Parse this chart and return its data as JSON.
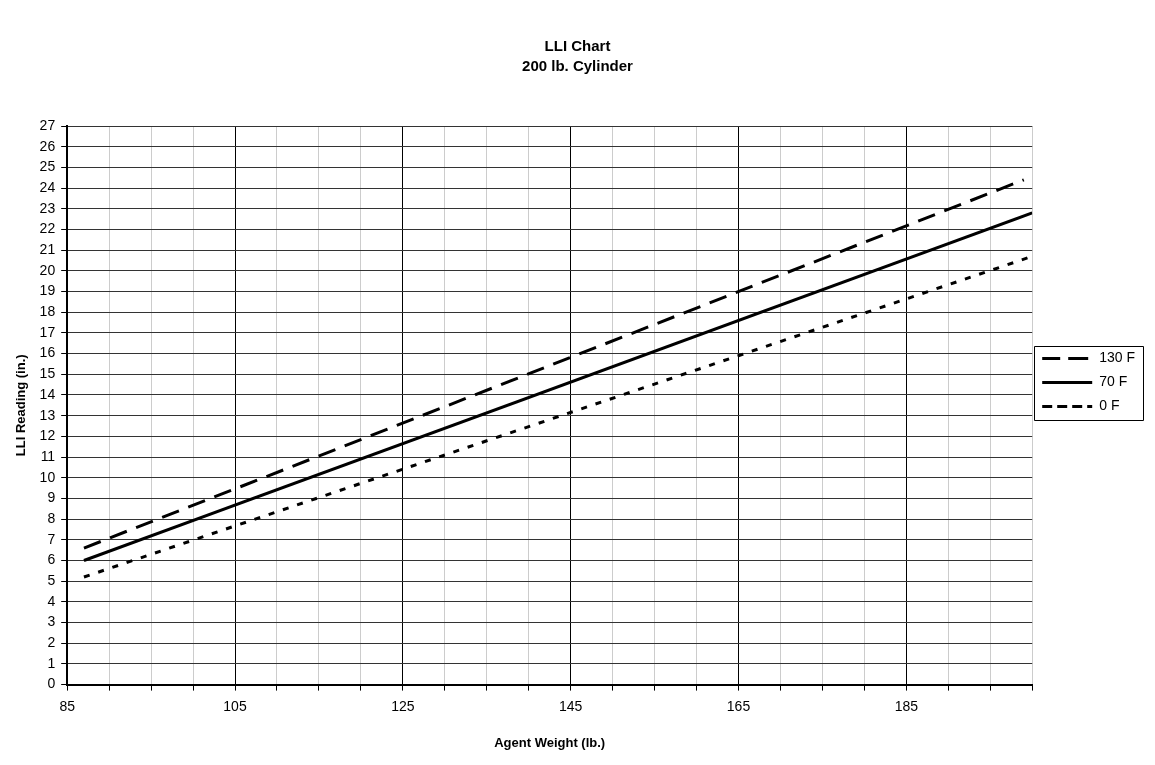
{
  "chart_data": {
    "type": "line",
    "title": "LLI Chart",
    "subtitle": "200 lb. Cylinder",
    "xlabel": "Agent Weight (lb.)",
    "ylabel": "LLI Reading (in.)",
    "xlim": [
      85,
      200
    ],
    "xticks": [
      85,
      {
        "value": 90,
        "label": null
      },
      {
        "value": 95,
        "label": null
      },
      {
        "value": 100,
        "label": null
      },
      105,
      {
        "value": 110,
        "label": null
      },
      {
        "value": 115,
        "label": null
      },
      {
        "value": 120,
        "label": null
      },
      125,
      {
        "value": 130,
        "label": null
      },
      {
        "value": 135,
        "label": null
      },
      {
        "value": 140,
        "label": null
      },
      145,
      {
        "value": 150,
        "label": null
      },
      {
        "value": 155,
        "label": null
      },
      {
        "value": 160,
        "label": null
      },
      165,
      {
        "value": 170,
        "label": null
      },
      {
        "value": 175,
        "label": null
      },
      {
        "value": 180,
        "label": null
      },
      185,
      {
        "value": 190,
        "label": null
      },
      {
        "value": 195,
        "label": null
      },
      {
        "value": 200,
        "label": null
      }
    ],
    "ylim": [
      0,
      27
    ],
    "yticks": [
      0,
      1,
      2,
      3,
      4,
      5,
      6,
      7,
      8,
      9,
      10,
      11,
      12,
      13,
      14,
      15,
      16,
      17,
      18,
      19,
      20,
      21,
      22,
      23,
      24,
      25,
      26,
      27
    ],
    "grid": true,
    "legend": "right",
    "marker": "none",
    "series": [
      {
        "name": "130 F",
        "color": "#000000",
        "line_style": "dashed",
        "x": [
          87,
          199
        ],
        "values": [
          6.6,
          24.4
        ]
      },
      {
        "name": "70 F",
        "color": "#000000",
        "line_style": "solid",
        "x": [
          87,
          200
        ],
        "values": [
          6,
          22.8
        ]
      },
      {
        "name": "0 F",
        "color": "#000000",
        "line_style": "dotted",
        "x": [
          87,
          200
        ],
        "values": [
          5.2,
          20.7
        ]
      }
    ]
  }
}
